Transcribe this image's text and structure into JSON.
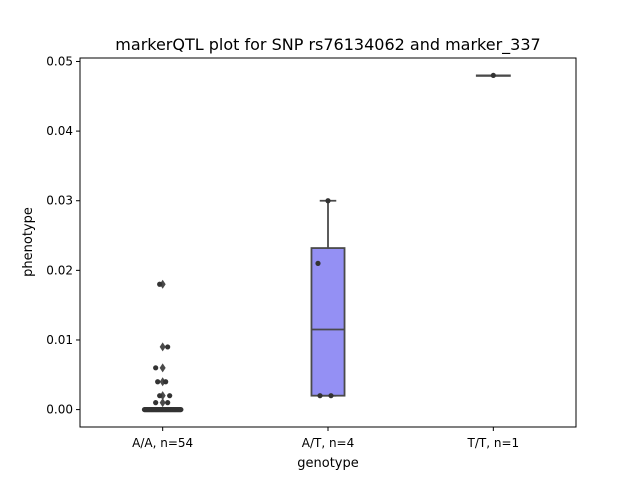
{
  "chart_data": {
    "type": "box",
    "title": "markerQTL plot for SNP rs76134062 and marker_337",
    "xlabel": "genotype",
    "ylabel": "phenotype",
    "ylim": [
      -0.0025,
      0.0505
    ],
    "yticks": [
      0.0,
      0.01,
      0.02,
      0.03,
      0.04,
      0.05
    ],
    "ytick_labels": [
      "0.00",
      "0.01",
      "0.02",
      "0.03",
      "0.04",
      "0.05"
    ],
    "categories": [
      "A/A, n=54",
      "A/T, n=4",
      "T/T, n=1"
    ],
    "colors": {
      "box_fill": "#9490f4",
      "box_edge": "#4a4a4a",
      "points": "#333333"
    },
    "boxes": [
      {
        "category": "A/A, n=54",
        "q1": 0.0,
        "median": 0.0,
        "q3": 0.0,
        "whisker_low": 0.0,
        "whisker_high": 0.0,
        "outliers": [
          0.018,
          0.009,
          0.006,
          0.004,
          0.002,
          0.001
        ]
      },
      {
        "category": "A/T, n=4",
        "q1": 0.002,
        "median": 0.0115,
        "q3": 0.0232,
        "whisker_low": 0.002,
        "whisker_high": 0.03,
        "outliers": []
      },
      {
        "category": "T/T, n=1",
        "q1": 0.048,
        "median": 0.048,
        "q3": 0.048,
        "whisker_low": 0.048,
        "whisker_high": 0.048,
        "outliers": []
      }
    ],
    "points": [
      {
        "group": 0,
        "values": [
          0.018,
          0.009,
          0.006,
          0.004,
          0.004,
          0.002,
          0.002,
          0.001,
          0.001,
          0.0,
          0.0,
          0.0,
          0.0,
          0.0,
          0.0,
          0.0,
          0.0,
          0.0,
          0.0,
          0.0,
          0.0,
          0.0,
          0.0,
          0.0,
          0.0,
          0.0,
          0.0,
          0.0,
          0.0,
          0.0,
          0.0,
          0.0,
          0.0,
          0.0,
          0.0,
          0.0,
          0.0,
          0.0,
          0.0,
          0.0,
          0.0,
          0.0,
          0.0,
          0.0,
          0.0,
          0.0,
          0.0,
          0.0,
          0.0,
          0.0,
          0.0,
          0.0,
          0.0,
          0.0
        ]
      },
      {
        "group": 1,
        "values": [
          0.03,
          0.021,
          0.002,
          0.002
        ]
      },
      {
        "group": 2,
        "values": [
          0.048
        ]
      }
    ]
  }
}
